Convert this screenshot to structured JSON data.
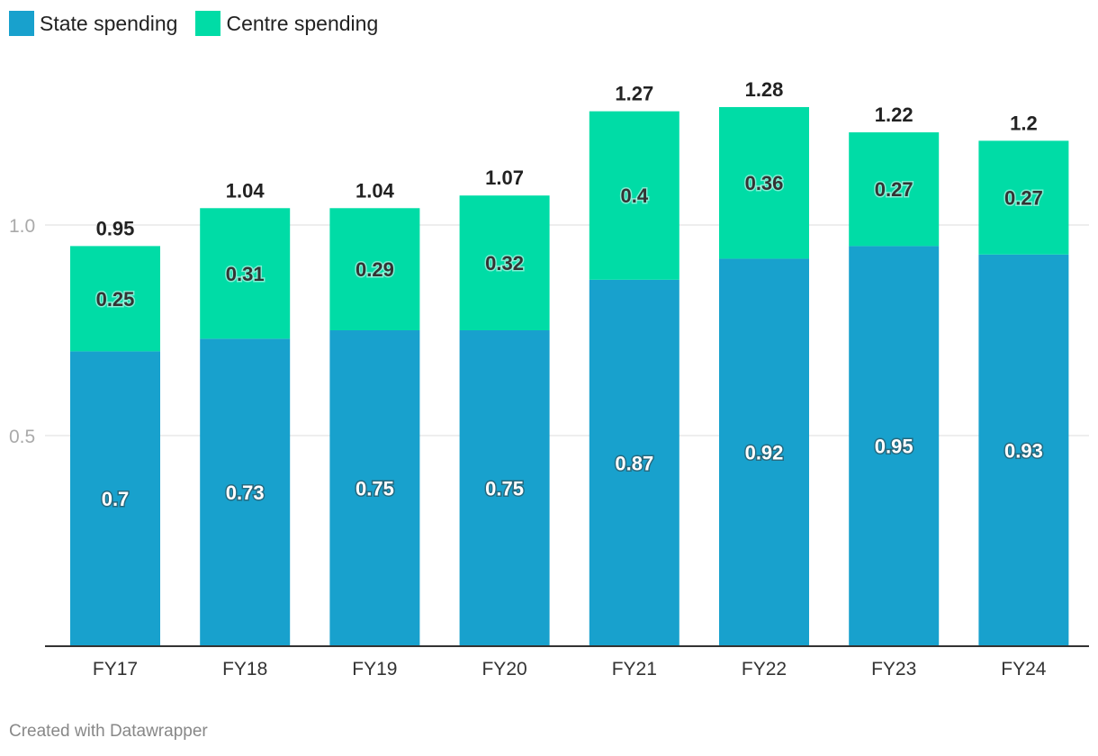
{
  "chart_data": {
    "type": "bar",
    "stacked": true,
    "categories": [
      "FY17",
      "FY18",
      "FY19",
      "FY20",
      "FY21",
      "FY22",
      "FY23",
      "FY24"
    ],
    "series": [
      {
        "name": "State spending",
        "color": "#18a1cd",
        "values": [
          0.7,
          0.73,
          0.75,
          0.75,
          0.87,
          0.92,
          0.95,
          0.93
        ]
      },
      {
        "name": "Centre spending",
        "color": "#00dca6",
        "values": [
          0.25,
          0.31,
          0.29,
          0.32,
          0.4,
          0.36,
          0.27,
          0.27
        ]
      }
    ],
    "totals": [
      "0.95",
      "1.04",
      "1.04",
      "1.07",
      "1.27",
      "1.28",
      "1.22",
      "1.2"
    ],
    "y_ticks": [
      {
        "value": 0.5,
        "label": "0.5"
      },
      {
        "value": 1.0,
        "label": "1.0"
      }
    ],
    "ylim": [
      0,
      1.3
    ],
    "grid": true,
    "legend": "top-left",
    "title": "",
    "xlabel": "",
    "ylabel": ""
  },
  "footer": "Created with Datawrapper"
}
